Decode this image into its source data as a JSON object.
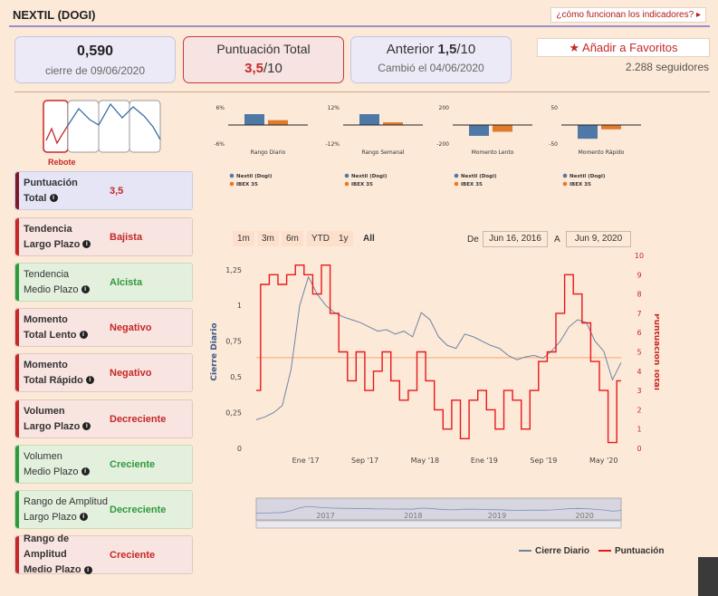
{
  "header": {
    "title": "NEXTIL (DOGI)",
    "help_link": "¿cómo funcionan los indicadores?",
    "help_arrow": "▸"
  },
  "cards": {
    "close": {
      "value": "0,590",
      "caption": "cierre de 09/06/2020"
    },
    "total": {
      "label": "Puntuación Total",
      "score": "3,5",
      "scale": "/10"
    },
    "previous": {
      "label": "Anterior",
      "score": "1,5",
      "scale": "/10",
      "caption": "Cambió el 04/06/2020"
    }
  },
  "favorites": {
    "star": "★",
    "label": "Añadir a Favoritos",
    "followers": "2.288 seguidores"
  },
  "pattern": {
    "label": "Rebote"
  },
  "indicators": [
    {
      "label1": "Puntuación",
      "label2": "Total",
      "value": "3,5",
      "tone": "blue"
    },
    {
      "label1": "Tendencia",
      "label2": "Largo Plazo",
      "value": "Bajista",
      "tone": "red"
    },
    {
      "label1": "Tendencia",
      "label2": "Medio Plazo",
      "value": "Alcista",
      "tone": "green"
    },
    {
      "label1": "Momento",
      "label2": "Total Lento",
      "value": "Negativo",
      "tone": "red"
    },
    {
      "label1": "Momento",
      "label2": "Total Rápido",
      "value": "Negativo",
      "tone": "red"
    },
    {
      "label1": "Volumen",
      "label2": "Largo Plazo",
      "value": "Decreciente",
      "tone": "red"
    },
    {
      "label1": "Volumen",
      "label2": "Medio Plazo",
      "value": "Creciente",
      "tone": "green"
    },
    {
      "label1": "Rango de Amplitud",
      "label2": "Largo Plazo",
      "value": "Decreciente",
      "tone": "green"
    },
    {
      "label1": "Rango de Amplitud",
      "label2": "Medio Plazo",
      "value": "Creciente",
      "tone": "red"
    }
  ],
  "info_glyph": "i",
  "colors": {
    "nextil": "#4e79a7",
    "ibex": "#e07b2b",
    "score_line": "#e8171d",
    "price_line": "#6b84a8"
  },
  "chart_data": [
    {
      "type": "bar",
      "title": "Rango Diario",
      "ymax_label": "6%",
      "ymin_label": "-6%",
      "ylim": [
        -6,
        6
      ],
      "series": [
        {
          "name": "Nextil (Dogi)",
          "values": [
            3.6
          ]
        },
        {
          "name": "IBEX 35",
          "values": [
            1.6
          ]
        }
      ]
    },
    {
      "type": "bar",
      "title": "Rango Semanal",
      "ymax_label": "12%",
      "ymin_label": "-12%",
      "ylim": [
        -12,
        12
      ],
      "series": [
        {
          "name": "Nextil (Dogi)",
          "values": [
            7.2
          ]
        },
        {
          "name": "IBEX 35",
          "values": [
            1.8
          ]
        }
      ]
    },
    {
      "type": "bar",
      "title": "Momento Lento",
      "ymax_label": "200",
      "ymin_label": "-200",
      "ylim": [
        -200,
        200
      ],
      "series": [
        {
          "name": "Nextil (Dogi)",
          "values": [
            -120
          ]
        },
        {
          "name": "IBEX 35",
          "values": [
            -75
          ]
        }
      ]
    },
    {
      "type": "bar",
      "title": "Momento Rápido",
      "ymax_label": "50",
      "ymin_label": "-50",
      "ylim": [
        -50,
        50
      ],
      "series": [
        {
          "name": "Nextil (Dogi)",
          "values": [
            -38
          ]
        },
        {
          "name": "IBEX 35",
          "values": [
            -12
          ]
        }
      ]
    },
    {
      "type": "line",
      "title": "",
      "y_left": {
        "label": "Cierre Diario",
        "ticks": [
          "0",
          "0,25",
          "0,5",
          "0,75",
          "1",
          "1,25"
        ],
        "range": [
          0,
          1.35
        ]
      },
      "y_right": {
        "label": "Puntuación Total",
        "ticks": [
          "0",
          "1",
          "2",
          "3",
          "4",
          "5",
          "6",
          "7",
          "8",
          "9",
          "10"
        ],
        "range": [
          0,
          10
        ]
      },
      "x_ticks": [
        "Ene '17",
        "Sep '17",
        "May '18",
        "Ene '19",
        "Sep '19",
        "May '20"
      ],
      "x_range": [
        0,
        42
      ],
      "reference_line": 4.7,
      "series": [
        {
          "name": "Cierre Diario",
          "x": [
            0,
            1,
            2,
            3,
            4,
            5,
            6,
            7,
            8,
            9,
            10,
            11,
            12,
            13,
            14,
            15,
            16,
            17,
            18,
            19,
            20,
            21,
            22,
            23,
            24,
            25,
            26,
            27,
            28,
            29,
            30,
            31,
            32,
            33,
            34,
            35,
            36,
            37,
            38,
            39,
            40,
            41,
            42
          ],
          "values": [
            0.2,
            0.22,
            0.25,
            0.3,
            0.55,
            1.0,
            1.2,
            1.08,
            1.0,
            0.95,
            0.92,
            0.9,
            0.88,
            0.85,
            0.82,
            0.83,
            0.8,
            0.82,
            0.78,
            0.95,
            0.9,
            0.78,
            0.72,
            0.7,
            0.8,
            0.78,
            0.75,
            0.72,
            0.7,
            0.65,
            0.62,
            0.64,
            0.65,
            0.63,
            0.68,
            0.75,
            0.85,
            0.9,
            0.88,
            0.75,
            0.68,
            0.48,
            0.6
          ]
        },
        {
          "name": "Puntuación",
          "x": [
            0,
            1,
            2,
            3,
            4,
            5,
            6,
            7,
            8,
            9,
            10,
            11,
            12,
            13,
            14,
            15,
            16,
            17,
            18,
            19,
            20,
            21,
            22,
            23,
            24,
            25,
            26,
            27,
            28,
            29,
            30,
            31,
            32,
            33,
            34,
            35,
            36,
            37,
            38,
            39,
            40,
            41,
            42
          ],
          "values": [
            3,
            8.5,
            9,
            8.5,
            9,
            9.5,
            9,
            8,
            9.5,
            7,
            5,
            3.5,
            5,
            3,
            4,
            5,
            3.5,
            2.5,
            3,
            5,
            3.5,
            2,
            1,
            2.5,
            0.5,
            2.5,
            3,
            2,
            1,
            3,
            2.5,
            1,
            3,
            4.5,
            5,
            7,
            9,
            8,
            6.5,
            4.5,
            3,
            0.3,
            3.5
          ]
        }
      ],
      "range_buttons": [
        "1m",
        "3m",
        "6m",
        "YTD",
        "1y",
        "All"
      ],
      "range_selected": "All",
      "date_from_label": "De",
      "date_from": "Jun 16, 2016",
      "date_to_label": "A",
      "date_to": "Jun 9, 2020",
      "navigator_years": [
        "2017",
        "2018",
        "2019",
        "2020"
      ],
      "legend": [
        "Cierre Diario",
        "Puntuación"
      ]
    }
  ]
}
